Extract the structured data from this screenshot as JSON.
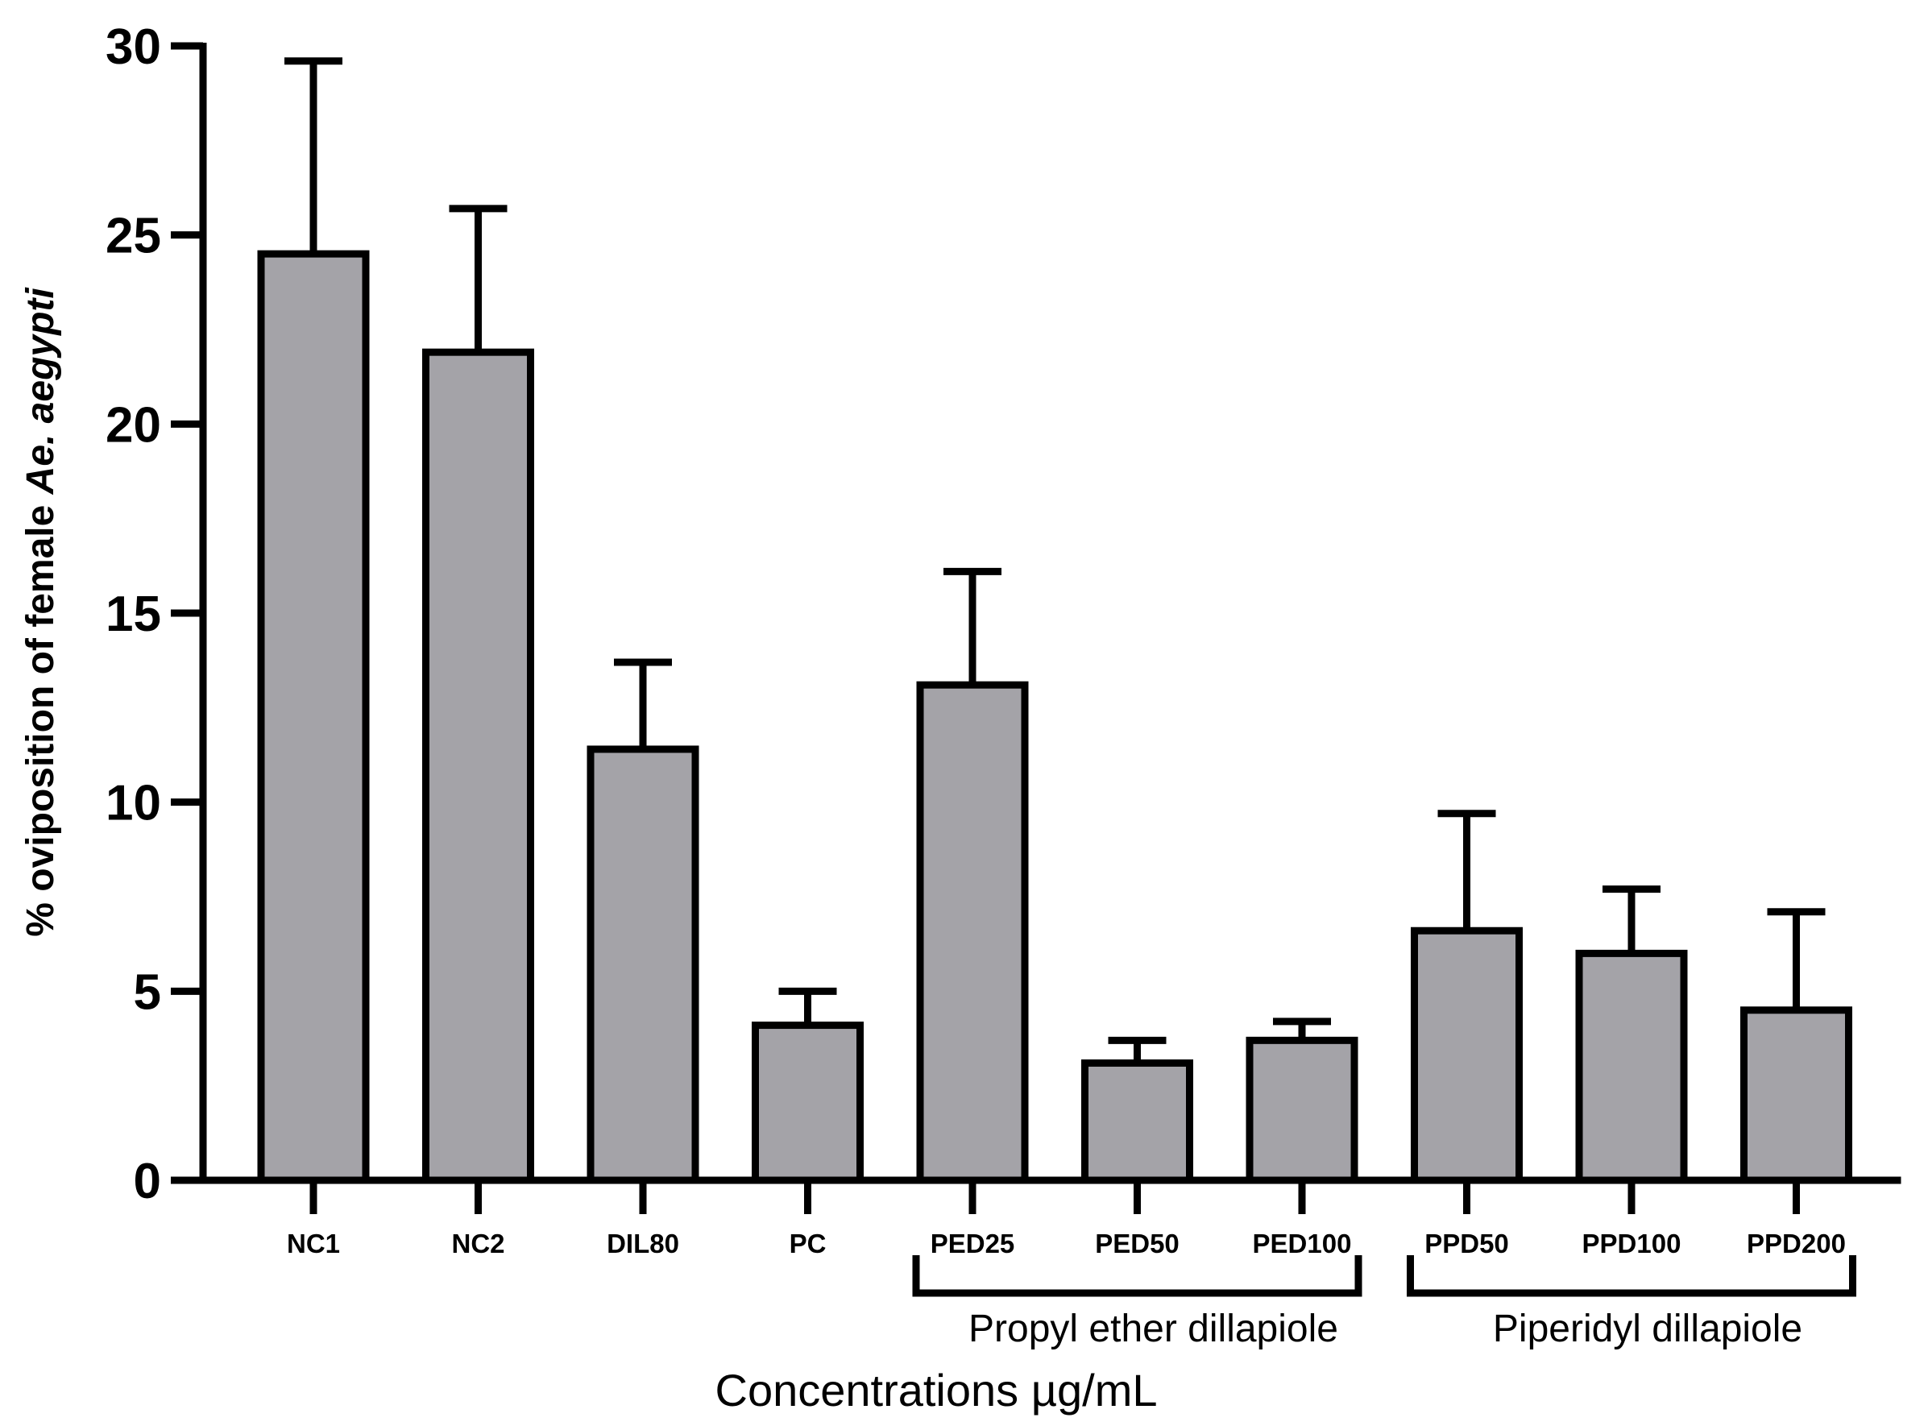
{
  "chart_data": {
    "type": "bar",
    "categories": [
      "NC1",
      "NC2",
      "DIL80",
      "PC",
      "PED25",
      "PED50",
      "PED100",
      "PPD50",
      "PPD100",
      "PPD200"
    ],
    "values": [
      24.5,
      21.9,
      11.4,
      4.1,
      13.1,
      3.1,
      3.7,
      6.6,
      6.0,
      4.5
    ],
    "errors": [
      5.1,
      3.8,
      2.3,
      0.9,
      3.0,
      0.6,
      0.5,
      3.1,
      1.7,
      2.6
    ],
    "ylim": [
      0,
      30
    ],
    "yticks": [
      0,
      5,
      10,
      15,
      20,
      25,
      30
    ],
    "ylabel_prefix": "% oviposition of female ",
    "ylabel_italic": "Ae. aegypti",
    "xlabel": "Concentrations µg/mL",
    "groups": [
      {
        "label": "Propyl ether dillapiole",
        "from": 4,
        "to": 6
      },
      {
        "label": "Piperidyl dillapiole",
        "from": 7,
        "to": 9
      }
    ],
    "bar_color": "#a4a3a8",
    "grid": false
  }
}
